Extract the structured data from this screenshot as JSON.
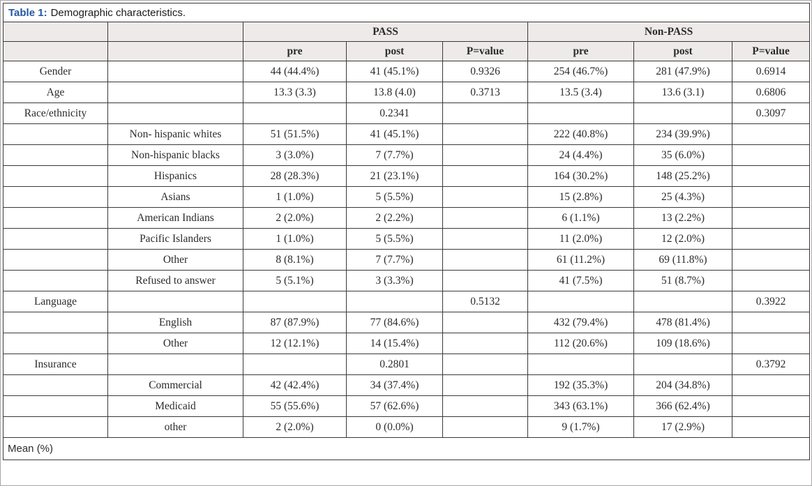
{
  "title": {
    "label": "Table 1:",
    "text": "Demographic characteristics."
  },
  "colors": {
    "accent_blue": "#2257a5",
    "header_bg": "#eeeaea",
    "border": "#3c3839",
    "text": "#2b2b2b",
    "outer_frame": "#a9a5a6"
  },
  "table": {
    "group_headers": {
      "pass": "PASS",
      "non_pass": "Non-PASS"
    },
    "col_headers": {
      "pre": "pre",
      "post": "post",
      "pvalue": "P=value"
    },
    "rows": [
      {
        "category": "Gender",
        "subcategory": "",
        "cells": [
          "44 (44.4%)",
          "41 (45.1%)",
          "0.9326",
          "254 (46.7%)",
          "281 (47.9%)",
          "0.6914"
        ]
      },
      {
        "category": "Age",
        "subcategory": "",
        "cells": [
          "13.3 (3.3)",
          "13.8 (4.0)",
          "0.3713",
          "13.5 (3.4)",
          "13.6 (3.1)",
          "0.6806"
        ]
      },
      {
        "category": "Race/ethnicity",
        "subcategory": "",
        "cells": [
          "",
          "0.2341",
          "",
          "",
          "",
          "0.3097"
        ]
      },
      {
        "category": "",
        "subcategory": "Non- hispanic whites",
        "cells": [
          "51 (51.5%)",
          "41 (45.1%)",
          "",
          "222 (40.8%)",
          "234 (39.9%)",
          ""
        ]
      },
      {
        "category": "",
        "subcategory": "Non-hispanic blacks",
        "cells": [
          "3 (3.0%)",
          "7 (7.7%)",
          "",
          "24 (4.4%)",
          "35 (6.0%)",
          ""
        ]
      },
      {
        "category": "",
        "subcategory": "Hispanics",
        "cells": [
          "28 (28.3%)",
          "21 (23.1%)",
          "",
          "164 (30.2%)",
          "148 (25.2%)",
          ""
        ]
      },
      {
        "category": "",
        "subcategory": "Asians",
        "cells": [
          "1 (1.0%)",
          "5 (5.5%)",
          "",
          "15 (2.8%)",
          "25 (4.3%)",
          ""
        ]
      },
      {
        "category": "",
        "subcategory": "American Indians",
        "cells": [
          "2 (2.0%)",
          "2 (2.2%)",
          "",
          "6 (1.1%)",
          "13 (2.2%)",
          ""
        ]
      },
      {
        "category": "",
        "subcategory": "Pacific Islanders",
        "cells": [
          "1 (1.0%)",
          "5 (5.5%)",
          "",
          "11 (2.0%)",
          "12 (2.0%)",
          ""
        ]
      },
      {
        "category": "",
        "subcategory": "Other",
        "cells": [
          "8 (8.1%)",
          "7 (7.7%)",
          "",
          "61 (11.2%)",
          "69 (11.8%)",
          ""
        ]
      },
      {
        "category": "",
        "subcategory": "Refused to answer",
        "cells": [
          "5 (5.1%)",
          "3 (3.3%)",
          "",
          "41 (7.5%)",
          "51 (8.7%)",
          ""
        ]
      },
      {
        "category": "Language",
        "subcategory": "",
        "cells": [
          "",
          "",
          "0.5132",
          "",
          "",
          "0.3922"
        ]
      },
      {
        "category": "",
        "subcategory": "English",
        "cells": [
          "87 (87.9%)",
          "77 (84.6%)",
          "",
          "432 (79.4%)",
          "478 (81.4%)",
          ""
        ]
      },
      {
        "category": "",
        "subcategory": "Other",
        "cells": [
          "12 (12.1%)",
          "14 (15.4%)",
          "",
          "112 (20.6%)",
          "109 (18.6%)",
          ""
        ]
      },
      {
        "category": "Insurance",
        "subcategory": "",
        "cells": [
          "",
          "0.2801",
          "",
          "",
          "",
          "0.3792"
        ]
      },
      {
        "category": "",
        "subcategory": "Commercial",
        "cells": [
          "42 (42.4%)",
          "34 (37.4%)",
          "",
          "192 (35.3%)",
          "204 (34.8%)",
          ""
        ]
      },
      {
        "category": "",
        "subcategory": "Medicaid",
        "cells": [
          "55 (55.6%)",
          "57 (62.6%)",
          "",
          "343 (63.1%)",
          "366 (62.4%)",
          ""
        ]
      },
      {
        "category": "",
        "subcategory": "other",
        "cells": [
          "2 (2.0%)",
          "0 (0.0%)",
          "",
          "9 (1.7%)",
          "17 (2.9%)",
          ""
        ]
      }
    ],
    "footer": "Mean (%)"
  }
}
